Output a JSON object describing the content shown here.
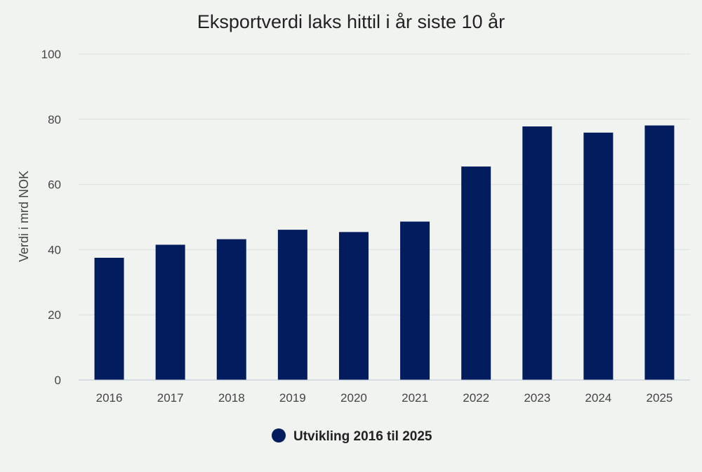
{
  "chart_data": {
    "type": "bar",
    "title": "Eksportverdi laks hittil i år siste 10 år",
    "ylabel": "Verdi i mrd NOK",
    "xlabel": "",
    "categories": [
      "2016",
      "2017",
      "2018",
      "2019",
      "2020",
      "2021",
      "2022",
      "2023",
      "2024",
      "2025"
    ],
    "series": [
      {
        "name": "Utvikling 2016 til 2025",
        "color": "#021c5e",
        "values": [
          37.5,
          41.5,
          43.2,
          46.1,
          45.4,
          48.6,
          65.5,
          77.8,
          75.9,
          78.1
        ]
      }
    ],
    "ylim": [
      0,
      100
    ],
    "yticks": [
      0,
      20,
      40,
      60,
      80,
      100
    ],
    "grid": true,
    "legend_position": "bottom-center"
  }
}
